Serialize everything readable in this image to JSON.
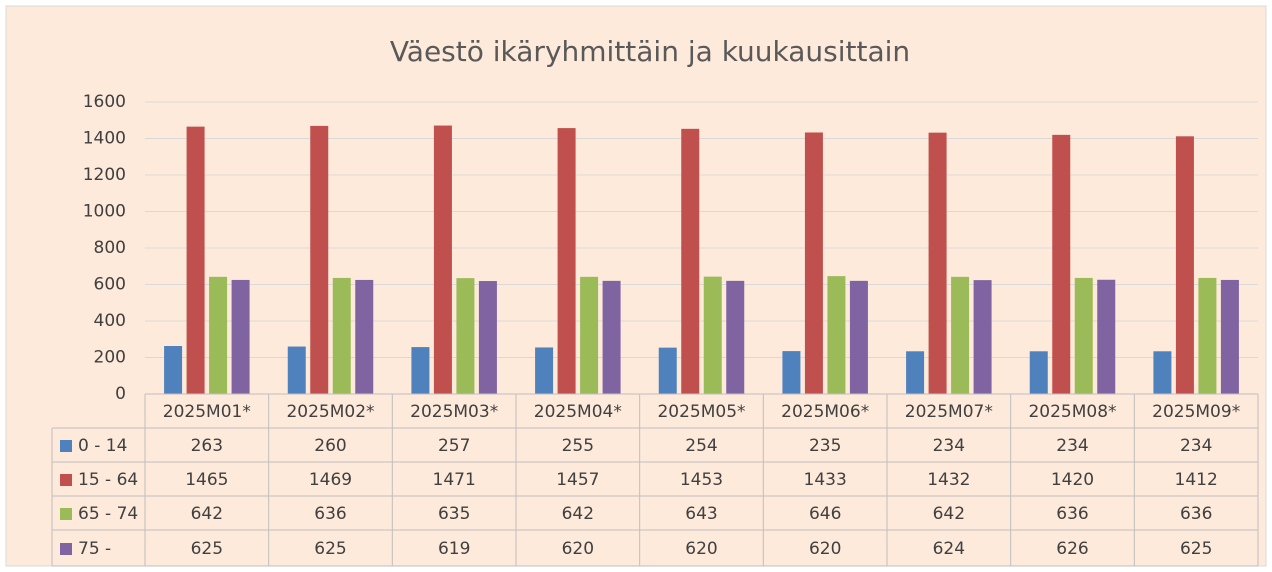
{
  "chart_data": {
    "type": "bar",
    "title": "Väestö ikäryhmittäin ja kuukausittain",
    "categories": [
      "2025M01*",
      "2025M02*",
      "2025M03*",
      "2025M04*",
      "2025M05*",
      "2025M06*",
      "2025M07*",
      "2025M08*",
      "2025M09*"
    ],
    "series": [
      {
        "name": "0 - 14",
        "color": "#4f81bd",
        "values": [
          263,
          260,
          257,
          255,
          254,
          235,
          234,
          234,
          234
        ]
      },
      {
        "name": "15 - 64",
        "color": "#c0504d",
        "values": [
          1465,
          1469,
          1471,
          1457,
          1453,
          1433,
          1432,
          1420,
          1412
        ]
      },
      {
        "name": "65 - 74",
        "color": "#9bbb59",
        "values": [
          642,
          636,
          635,
          642,
          643,
          646,
          642,
          636,
          636
        ]
      },
      {
        "name": "75 -",
        "color": "#8064a2",
        "values": [
          625,
          625,
          619,
          620,
          620,
          620,
          624,
          626,
          625
        ]
      }
    ],
    "ylim": [
      0,
      1600
    ],
    "yticks": [
      0,
      200,
      400,
      600,
      800,
      1000,
      1200,
      1400,
      1600
    ],
    "grid": true,
    "data_table": true
  }
}
